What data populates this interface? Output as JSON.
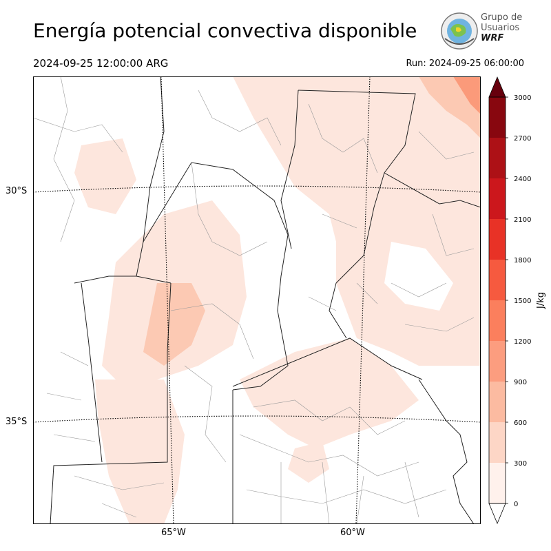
{
  "title": "Energía potencial convectiva disponible",
  "valid_time": "2024-09-25 12:00:00 ARG",
  "run_time": "Run: 2024-09-25 06:00:00",
  "logo": {
    "line1": "Grupo de",
    "line2": "Usuarios",
    "line3": "WRF"
  },
  "map": {
    "lat_labels": [
      "30°S",
      "35°S"
    ],
    "lon_labels": [
      "65°W",
      "60°W"
    ],
    "field": "CAPE",
    "fill_colors": {
      "low": "#fde6dd",
      "mid": "#fcc9b3",
      "high": "#fb9a7a"
    }
  },
  "colorbar": {
    "label": "J/kg",
    "ticks": [
      "0",
      "300",
      "600",
      "900",
      "1200",
      "1500",
      "1800",
      "2100",
      "2400",
      "2700",
      "3000"
    ],
    "colors": [
      "#fff1ec",
      "#fdd6c6",
      "#fcbba1",
      "#fc9d7f",
      "#fb7f5d",
      "#f65a3f",
      "#e83226",
      "#cc171c",
      "#ad1116",
      "#88070f"
    ],
    "over_color": "#67000d",
    "under_color": "#ffffff"
  }
}
